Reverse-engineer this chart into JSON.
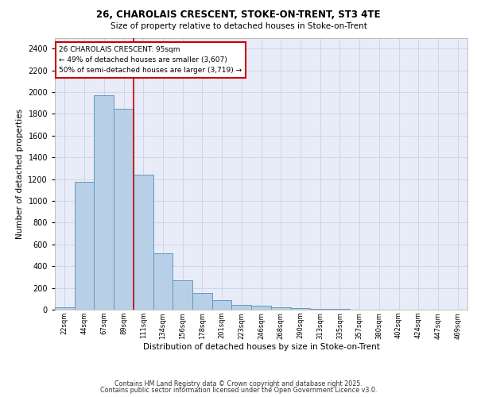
{
  "title_line1": "26, CHAROLAIS CRESCENT, STOKE-ON-TRENT, ST3 4TE",
  "title_line2": "Size of property relative to detached houses in Stoke-on-Trent",
  "xlabel": "Distribution of detached houses by size in Stoke-on-Trent",
  "ylabel": "Number of detached properties",
  "bar_labels": [
    "22sqm",
    "44sqm",
    "67sqm",
    "89sqm",
    "111sqm",
    "134sqm",
    "156sqm",
    "178sqm",
    "201sqm",
    "223sqm",
    "246sqm",
    "268sqm",
    "290sqm",
    "313sqm",
    "335sqm",
    "357sqm",
    "380sqm",
    "402sqm",
    "424sqm",
    "447sqm",
    "469sqm"
  ],
  "bar_values": [
    25,
    1175,
    1970,
    1850,
    1240,
    515,
    270,
    155,
    85,
    45,
    38,
    20,
    18,
    10,
    5,
    3,
    2,
    1,
    1,
    1,
    1
  ],
  "bar_color": "#b8cfe8",
  "bar_edge_color": "#6699bb",
  "grid_color": "#d0d4e8",
  "background_color": "#e8ecf8",
  "annotation_text": "26 CHAROLAIS CRESCENT: 95sqm\n← 49% of detached houses are smaller (3,607)\n50% of semi-detached houses are larger (3,719) →",
  "vline_pos": 3.5,
  "annotation_box_color": "#ffffff",
  "annotation_box_edge": "#cc0000",
  "vline_color": "#cc0000",
  "ylim": [
    0,
    2500
  ],
  "yticks": [
    0,
    200,
    400,
    600,
    800,
    1000,
    1200,
    1400,
    1600,
    1800,
    2000,
    2200,
    2400
  ],
  "footer_line1": "Contains HM Land Registry data © Crown copyright and database right 2025.",
  "footer_line2": "Contains public sector information licensed under the Open Government Licence v3.0."
}
